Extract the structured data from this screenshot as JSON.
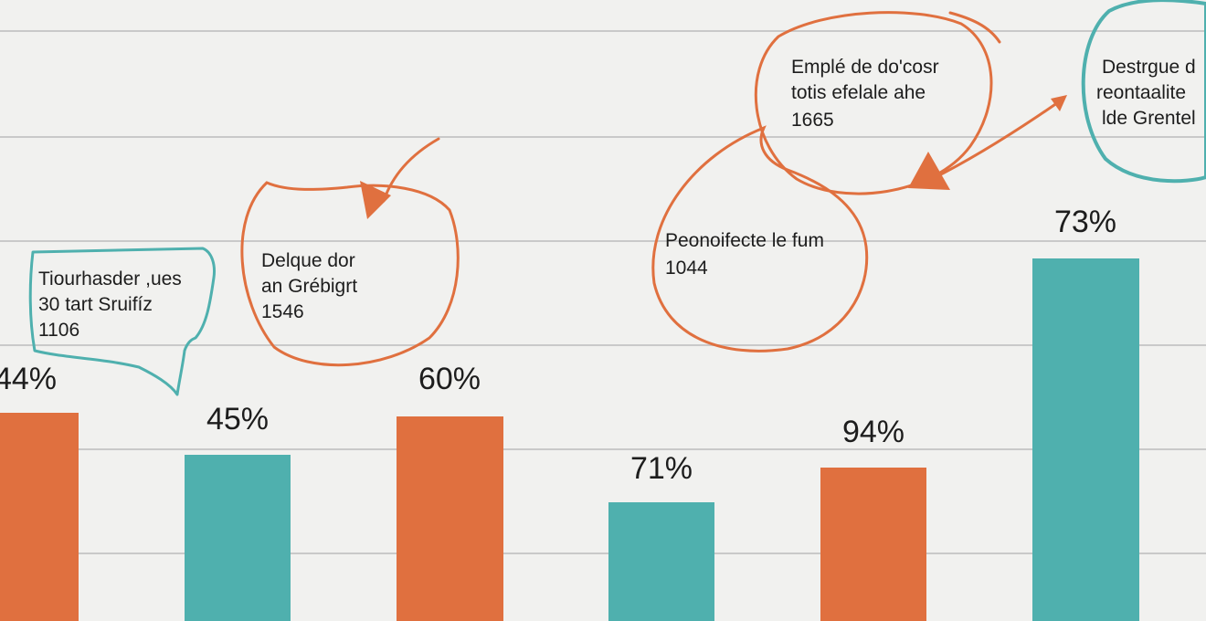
{
  "colors": {
    "background": "#f1f1ef",
    "grid": "#c9c9c9",
    "orange": "#e0703f",
    "teal": "#4fb0ae",
    "text": "#1d1d1d"
  },
  "chart_data": {
    "type": "bar",
    "title": "",
    "xlabel": "",
    "ylabel": "",
    "grid": true,
    "legend": "none",
    "bars": [
      {
        "label": "44%",
        "color": "orange"
      },
      {
        "label": "45%",
        "color": "teal"
      },
      {
        "label": "60%",
        "color": "orange"
      },
      {
        "label": "71%",
        "color": "teal"
      },
      {
        "label": "94%",
        "color": "orange"
      },
      {
        "label": "73%",
        "color": "teal"
      }
    ],
    "annotations": [
      {
        "lines": [
          "Tiourhasder ,ues",
          "30 tart Sruifíz",
          "1106"
        ],
        "style": "speech-bubble",
        "color": "teal"
      },
      {
        "lines": [
          "Delque dor",
          "an Grébigrt",
          "1546"
        ],
        "style": "hand-drawn-circle",
        "color": "orange"
      },
      {
        "lines": [
          "Emplé de do'cosr",
          "totis efelale ahe",
          "1665"
        ],
        "style": "hand-drawn-circle",
        "color": "orange"
      },
      {
        "lines": [
          "Peonoifecte le fum",
          "1044"
        ],
        "style": "hand-drawn-circle",
        "color": "orange"
      },
      {
        "lines": [
          "Destrgue d",
          "reontaalite",
          "lde Grentel"
        ],
        "style": "hand-drawn-circle",
        "color": "teal"
      }
    ]
  }
}
